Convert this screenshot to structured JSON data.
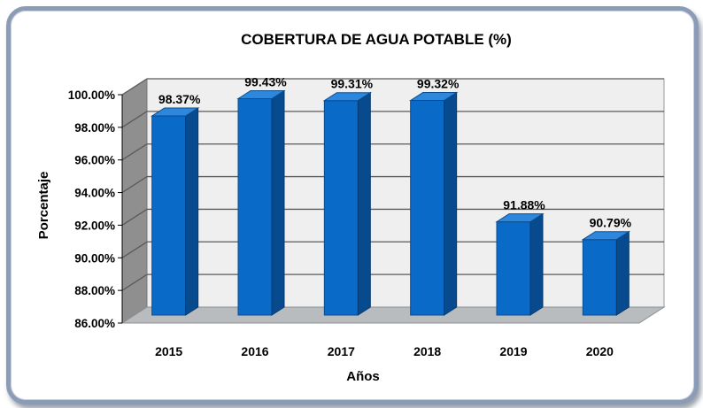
{
  "chart_data": {
    "type": "bar",
    "title": "COBERTURA DE AGUA POTABLE (%)",
    "xlabel": "Años",
    "ylabel": "Porcentaje",
    "categories": [
      "2015",
      "2016",
      "2017",
      "2018",
      "2019",
      "2020"
    ],
    "values": [
      98.37,
      99.43,
      99.31,
      99.32,
      91.88,
      90.79
    ],
    "data_labels": [
      "98.37%",
      "99.43%",
      "99.31%",
      "99.32%",
      "91.88%",
      "90.79%"
    ],
    "ylim": [
      86,
      100
    ],
    "yticks": [
      "86.00%",
      "88.00%",
      "90.00%",
      "92.00%",
      "94.00%",
      "96.00%",
      "98.00%",
      "100.00%"
    ],
    "grid": true,
    "style": "3d-column",
    "colors": {
      "bar_front": "#0a6ac8",
      "bar_side": "#074b8e",
      "bar_top": "#2d87dc",
      "wall": "#efefef",
      "side_wall": "#8f8f8f",
      "floor": "#b9bcbf",
      "grid": "#5a5a5a"
    }
  }
}
